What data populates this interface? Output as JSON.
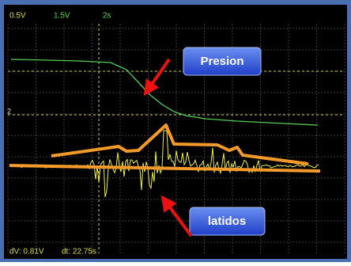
{
  "header": {
    "channel_1_scale": "0.5V",
    "channel_2_scale": "1.5V",
    "time_scale": "2s"
  },
  "markers": {
    "level_2": "2"
  },
  "callouts": {
    "pressure": "Presion",
    "beats": "latidos"
  },
  "footer": {
    "delta_v": "dV: 0.81V",
    "delta_t": "dt: 22.75s"
  }
}
